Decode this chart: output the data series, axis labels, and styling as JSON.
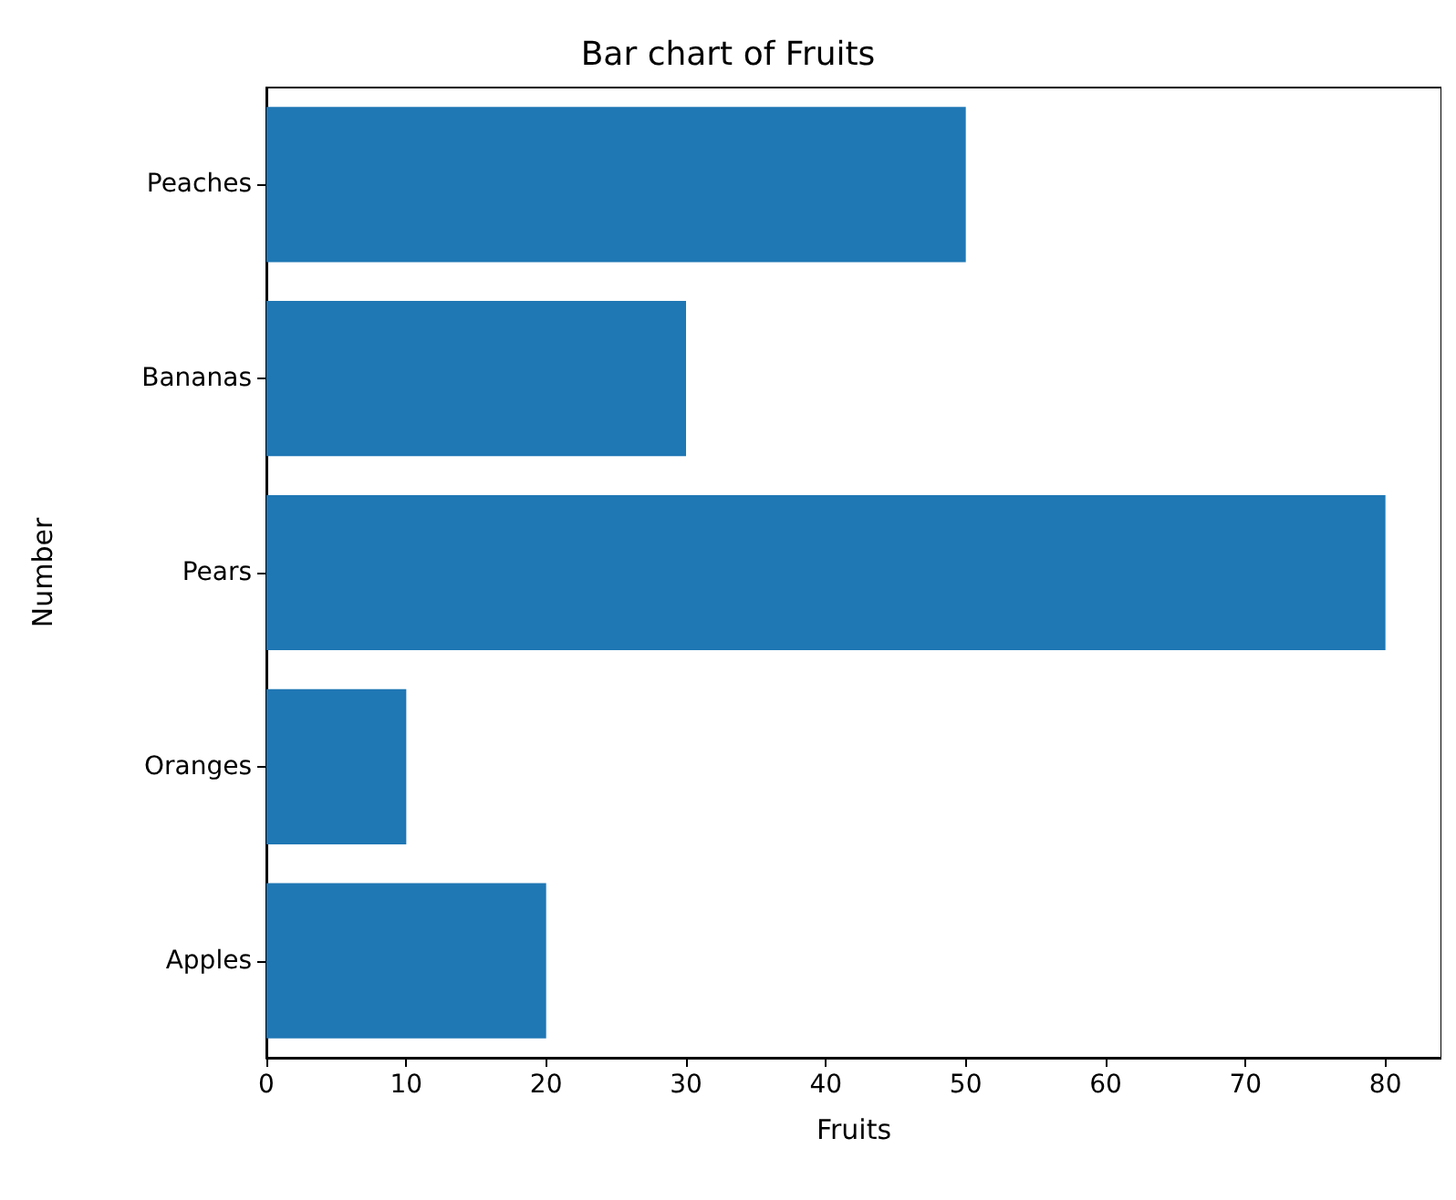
{
  "chart_data": {
    "type": "bar",
    "orientation": "horizontal",
    "title": "Bar chart of Fruits",
    "xlabel": "Fruits",
    "ylabel": "Number",
    "categories": [
      "Peaches",
      "Bananas",
      "Pears",
      "Oranges",
      "Apples"
    ],
    "values": [
      50,
      30,
      80,
      10,
      20
    ],
    "color": "#1f77b4",
    "xlim": [
      0,
      84
    ],
    "xticks": [
      0,
      10,
      20,
      30,
      40,
      50,
      60,
      70,
      80
    ],
    "grid": false
  }
}
